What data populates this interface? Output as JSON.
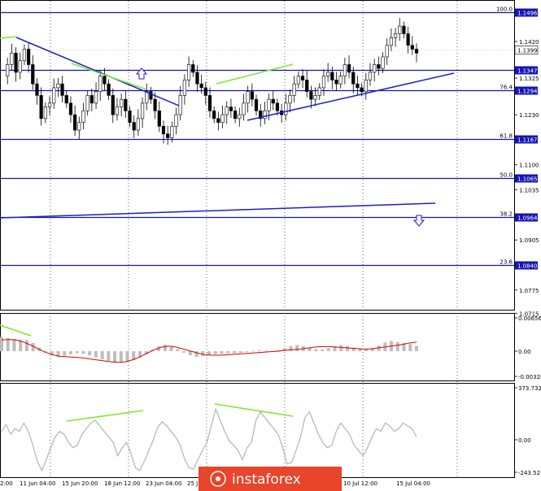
{
  "price_axis": {
    "ticks": [
      "1.1420",
      "1.1325",
      "1.1230",
      "1.1100",
      "1.1035",
      "1.0905",
      "1.0775",
      "1.0715"
    ],
    "min": 1.069,
    "max": 1.152
  },
  "fib_levels": [
    {
      "pct": "100.0",
      "price": "1.1496",
      "value": 1.1496
    },
    {
      "pct": "",
      "price": "1.1347",
      "value": 1.1347
    },
    {
      "pct": "76.4",
      "price": "1.1294",
      "value": 1.1294
    },
    {
      "pct": "61.8",
      "price": "1.1167",
      "value": 1.1167
    },
    {
      "pct": "50.0",
      "price": "1.1065",
      "value": 1.1065
    },
    {
      "pct": "38.2",
      "price": "1.0964",
      "value": 1.0964
    },
    {
      "pct": "23.6",
      "price": "1.0840",
      "value": 1.084
    }
  ],
  "current_price": {
    "label": "1.1399",
    "value": 1.1399
  },
  "macd_axis": {
    "top": "0.00656",
    "zero": "0.00",
    "bottom": "-0.00328"
  },
  "cci_axis": {
    "top": "373.7321",
    "zero": "0.00",
    "bottom": "-243.5270"
  },
  "time_labels": [
    "2:00",
    "11 Jun 04:00",
    "15 Jun 20:00",
    "18 Jun 12:00",
    "23 Jun 04:00",
    "25 J",
    "10 Jul 12:00",
    "15 Jul 04:00"
  ],
  "watermark": "instaforex",
  "colors": {
    "trend": "#1e1ed2",
    "divergence": "#7ee832",
    "level": "#1414b4",
    "macd_hist": "#bdbdbd",
    "signal": "#e00000",
    "cci": "#b4b4b4",
    "badge": "#1414b4",
    "watermark_bg": "#e8452a"
  },
  "icons": {
    "up_arrow": "arrow-up-outline-icon",
    "down_arrow": "arrow-down-outline-icon"
  },
  "chart_data": {
    "type": "candlestick",
    "instrument_note": "",
    "price_path": [
      1.133,
      1.136,
      1.139,
      1.134,
      1.137,
      1.14,
      1.136,
      1.131,
      1.128,
      1.122,
      1.125,
      1.126,
      1.13,
      1.131,
      1.128,
      1.126,
      1.123,
      1.119,
      1.121,
      1.124,
      1.128,
      1.126,
      1.129,
      1.133,
      1.131,
      1.128,
      1.123,
      1.125,
      1.127,
      1.124,
      1.121,
      1.119,
      1.122,
      1.126,
      1.129,
      1.127,
      1.124,
      1.12,
      1.118,
      1.117,
      1.12,
      1.123,
      1.128,
      1.132,
      1.136,
      1.134,
      1.131,
      1.13,
      1.128,
      1.124,
      1.122,
      1.121,
      1.123,
      1.125,
      1.124,
      1.122,
      1.123,
      1.126,
      1.129,
      1.127,
      1.124,
      1.122,
      1.124,
      1.127,
      1.126,
      1.124,
      1.123,
      1.126,
      1.128,
      1.131,
      1.133,
      1.132,
      1.129,
      1.127,
      1.128,
      1.13,
      1.133,
      1.134,
      1.132,
      1.131,
      1.133,
      1.136,
      1.134,
      1.131,
      1.13,
      1.129,
      1.132,
      1.134,
      1.136,
      1.135,
      1.138,
      1.141,
      1.143,
      1.144,
      1.146,
      1.144,
      1.141,
      1.14,
      1.139
    ],
    "macd_hist": [
      0.0028,
      0.0026,
      0.0024,
      0.0023,
      0.0022,
      0.0016,
      0.0007,
      -0.0002,
      -0.0008,
      -0.0012,
      -0.0009,
      -0.0006,
      -0.0004,
      -0.0005,
      -0.0008,
      -0.0012,
      -0.0016,
      -0.0019,
      -0.0021,
      -0.0022,
      -0.0021,
      -0.0018,
      -0.0013,
      -0.0006,
      0.0003,
      0.001,
      0.0013,
      0.001,
      0.0004,
      -0.0003,
      -0.0008,
      -0.0011,
      -0.001,
      -0.0008,
      -0.0006,
      -0.0005,
      -0.0004,
      -0.0004,
      -0.0003,
      -0.0001,
      0.0001,
      0.0002,
      0.0001,
      0.0,
      0.0002,
      0.0006,
      0.001,
      0.0012,
      0.001,
      0.0007,
      0.0004,
      0.0003,
      0.0006,
      0.001,
      0.0012,
      0.001,
      0.0007,
      0.0005,
      0.0004,
      0.0006,
      0.0011,
      0.0017,
      0.002,
      0.0018,
      0.0016,
      0.0014,
      0.001
    ],
    "macd_signal": [
      0.0022,
      0.0023,
      0.0022,
      0.0018,
      0.0012,
      0.0005,
      -0.0002,
      -0.0007,
      -0.001,
      -0.0011,
      -0.0012,
      -0.0013,
      -0.0015,
      -0.0017,
      -0.0019,
      -0.0021,
      -0.0022,
      -0.0021,
      -0.0017,
      -0.0011,
      -0.0004,
      0.0003,
      0.0008,
      0.001,
      0.0008,
      0.0004,
      0.0,
      -0.0004,
      -0.0007,
      -0.0008,
      -0.0008,
      -0.0007,
      -0.0006,
      -0.0005,
      -0.0004,
      -0.0003,
      -0.0002,
      -0.0001,
      0.0,
      0.0002,
      0.0003,
      0.0004,
      0.0006,
      0.0008,
      0.0009,
      0.0009,
      0.0008,
      0.0007,
      0.0006,
      0.0005,
      0.0004,
      0.0005,
      0.0007,
      0.0009,
      0.0011,
      0.0013,
      0.0016,
      0.0018
    ],
    "cci": [
      60,
      110,
      40,
      80,
      60,
      120,
      60,
      -40,
      -160,
      -230,
      -150,
      -60,
      20,
      60,
      40,
      -20,
      -60,
      -40,
      40,
      80,
      120,
      140,
      100,
      60,
      20,
      -20,
      -120,
      -60,
      -20,
      -100,
      -210,
      -230,
      -160,
      -80,
      0,
      90,
      130,
      100,
      60,
      20,
      -40,
      -140,
      -210,
      -220,
      -150,
      -80,
      -20,
      100,
      220,
      140,
      60,
      -10,
      -40,
      -80,
      -150,
      -60,
      -20,
      140,
      200,
      160,
      120,
      80,
      40,
      -60,
      -180,
      -170,
      -80,
      20,
      160,
      200,
      120,
      40,
      -20,
      -60,
      -40,
      60,
      120,
      80,
      40,
      -40,
      -80,
      -120,
      -60,
      20,
      80,
      60,
      120,
      100,
      60,
      80,
      120,
      100,
      80,
      20
    ]
  }
}
